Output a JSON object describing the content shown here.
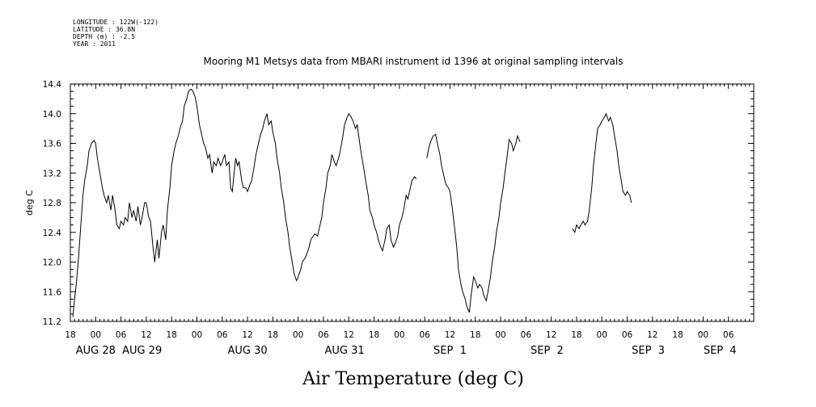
{
  "header": {
    "longitude": "LONGITUDE : 122W(-122)",
    "latitude": "LATITUDE : 36.8N",
    "depth": "DEPTH (m) : -2.5",
    "year": "YEAR : 2011"
  },
  "chart_data": {
    "type": "line",
    "title": "Mooring M1 Metsys data from MBARI instrument id 1396 at original sampling intervals",
    "xlabel": "Air Temperature (deg C)",
    "ylabel": "deg C",
    "ylim": [
      11.2,
      14.4
    ],
    "xlim_hours_from_aug28_00": [
      -6,
      156
    ],
    "yticks": [
      "11.2",
      "11.6",
      "12.0",
      "12.4",
      "12.8",
      "13.2",
      "13.6",
      "14.0",
      "14.4"
    ],
    "xticks": [
      "18",
      "00",
      "06",
      "12",
      "18",
      "00",
      "06",
      "12",
      "18",
      "00",
      "06",
      "12",
      "18",
      "00",
      "06",
      "12",
      "18",
      "00",
      "06",
      "12",
      "18",
      "00",
      "06",
      "12",
      "18",
      "00",
      "06"
    ],
    "date_labels": [
      "AUG 28",
      "AUG 29",
      "AUG 30",
      "AUG 31",
      "SEP  1",
      "SEP  2",
      "SEP  3",
      "SEP  4"
    ],
    "grid": false,
    "series": [
      {
        "segments": [
          [
            [
              -5.4,
              11.26
            ],
            [
              -5,
              11.5
            ],
            [
              -4.6,
              11.7
            ],
            [
              -4,
              12.1
            ],
            [
              -3.4,
              12.6
            ],
            [
              -3,
              12.9
            ],
            [
              -2.6,
              13.1
            ],
            [
              -2,
              13.3
            ],
            [
              -1.6,
              13.5
            ],
            [
              -1,
              13.6
            ],
            [
              -0.4,
              13.64
            ],
            [
              0,
              13.6
            ],
            [
              0.4,
              13.4
            ],
            [
              1,
              13.2
            ],
            [
              1.6,
              13.0
            ],
            [
              2,
              12.9
            ],
            [
              2.6,
              12.8
            ],
            [
              3,
              12.9
            ],
            [
              3.6,
              12.7
            ],
            [
              4,
              12.9
            ],
            [
              4.6,
              12.7
            ],
            [
              5,
              12.5
            ],
            [
              5.6,
              12.45
            ],
            [
              6,
              12.55
            ],
            [
              6.6,
              12.5
            ],
            [
              7,
              12.6
            ],
            [
              7.6,
              12.55
            ],
            [
              8,
              12.8
            ],
            [
              8.6,
              12.6
            ],
            [
              9,
              12.7
            ],
            [
              9.6,
              12.55
            ],
            [
              10,
              12.75
            ],
            [
              10.6,
              12.5
            ],
            [
              11,
              12.6
            ],
            [
              11.6,
              12.8
            ],
            [
              12,
              12.8
            ],
            [
              12.6,
              12.6
            ],
            [
              13,
              12.55
            ],
            [
              13.6,
              12.2
            ],
            [
              14,
              12.0
            ],
            [
              14.6,
              12.3
            ],
            [
              15,
              12.05
            ],
            [
              15.6,
              12.4
            ],
            [
              16,
              12.5
            ],
            [
              16.6,
              12.3
            ],
            [
              17,
              12.7
            ],
            [
              17.6,
              13.0
            ],
            [
              18,
              13.3
            ],
            [
              18.6,
              13.5
            ],
            [
              19,
              13.6
            ],
            [
              19.6,
              13.7
            ],
            [
              20,
              13.8
            ],
            [
              20.6,
              13.9
            ],
            [
              21,
              14.1
            ],
            [
              21.6,
              14.2
            ],
            [
              22,
              14.3
            ],
            [
              22.6,
              14.33
            ],
            [
              23,
              14.31
            ],
            [
              23.6,
              14.22
            ],
            [
              24,
              14.1
            ],
            [
              24.6,
              13.85
            ],
            [
              25,
              13.75
            ],
            [
              25.6,
              13.6
            ],
            [
              26,
              13.55
            ],
            [
              26.6,
              13.4
            ],
            [
              27,
              13.45
            ],
            [
              27.6,
              13.2
            ],
            [
              28,
              13.35
            ],
            [
              28.6,
              13.3
            ],
            [
              29,
              13.4
            ],
            [
              29.6,
              13.3
            ],
            [
              30,
              13.35
            ],
            [
              30.6,
              13.45
            ],
            [
              31,
              13.3
            ],
            [
              31.6,
              13.35
            ],
            [
              32,
              13.0
            ],
            [
              32.4,
              12.95
            ],
            [
              32.8,
              13.2
            ],
            [
              33.2,
              13.4
            ],
            [
              33.6,
              13.3
            ],
            [
              34,
              13.35
            ],
            [
              34.6,
              13.1
            ],
            [
              35,
              13.0
            ],
            [
              35.6,
              13.0
            ],
            [
              36,
              12.95
            ],
            [
              36.6,
              13.05
            ],
            [
              37,
              13.1
            ],
            [
              37.6,
              13.3
            ],
            [
              38,
              13.45
            ],
            [
              38.6,
              13.6
            ],
            [
              39,
              13.7
            ],
            [
              39.6,
              13.8
            ],
            [
              40,
              13.9
            ],
            [
              40.6,
              14.0
            ],
            [
              41,
              13.85
            ],
            [
              41.6,
              13.9
            ],
            [
              42,
              13.75
            ],
            [
              42.6,
              13.6
            ],
            [
              43,
              13.4
            ],
            [
              43.6,
              13.2
            ],
            [
              44,
              13.0
            ],
            [
              44.6,
              12.8
            ],
            [
              45,
              12.6
            ],
            [
              45.6,
              12.4
            ],
            [
              46,
              12.2
            ],
            [
              46.6,
              12.0
            ],
            [
              47,
              11.85
            ],
            [
              47.6,
              11.75
            ],
            [
              48,
              11.8
            ],
            [
              48.6,
              11.9
            ],
            [
              49,
              12.0
            ],
            [
              49.6,
              12.05
            ],
            [
              50,
              12.1
            ],
            [
              50.6,
              12.2
            ],
            [
              51,
              12.3
            ],
            [
              51.6,
              12.35
            ],
            [
              52,
              12.38
            ],
            [
              52.6,
              12.35
            ],
            [
              53,
              12.45
            ],
            [
              53.6,
              12.6
            ],
            [
              54,
              12.8
            ],
            [
              54.6,
              13.0
            ],
            [
              55,
              13.2
            ],
            [
              55.6,
              13.3
            ],
            [
              56,
              13.45
            ],
            [
              56.6,
              13.35
            ],
            [
              57,
              13.3
            ],
            [
              57.6,
              13.4
            ],
            [
              58,
              13.5
            ],
            [
              58.6,
              13.7
            ],
            [
              59,
              13.85
            ],
            [
              59.6,
              13.95
            ],
            [
              60,
              14.0
            ],
            [
              60.6,
              13.95
            ],
            [
              61,
              13.9
            ],
            [
              61.6,
              13.8
            ],
            [
              62,
              13.85
            ],
            [
              62.6,
              13.6
            ],
            [
              63,
              13.45
            ],
            [
              63.6,
              13.25
            ],
            [
              64,
              13.1
            ],
            [
              64.6,
              12.9
            ],
            [
              65,
              12.7
            ],
            [
              65.6,
              12.6
            ],
            [
              66,
              12.5
            ],
            [
              66.6,
              12.4
            ],
            [
              67,
              12.3
            ],
            [
              67.6,
              12.2
            ],
            [
              68,
              12.15
            ],
            [
              68.6,
              12.3
            ],
            [
              69,
              12.45
            ],
            [
              69.6,
              12.5
            ],
            [
              70,
              12.3
            ],
            [
              70.6,
              12.2
            ],
            [
              71,
              12.25
            ],
            [
              71.6,
              12.35
            ],
            [
              72,
              12.5
            ],
            [
              72.6,
              12.6
            ],
            [
              73,
              12.7
            ],
            [
              73.6,
              12.9
            ],
            [
              74,
              12.85
            ],
            [
              74.6,
              13.0
            ],
            [
              75,
              13.1
            ],
            [
              75.6,
              13.15
            ],
            [
              76,
              13.12
            ]
          ],
          [
            [
              78.5,
              13.4
            ],
            [
              79,
              13.55
            ],
            [
              79.6,
              13.65
            ],
            [
              80,
              13.7
            ],
            [
              80.6,
              13.72
            ],
            [
              81,
              13.6
            ],
            [
              81.6,
              13.45
            ],
            [
              82,
              13.3
            ],
            [
              82.6,
              13.15
            ],
            [
              83,
              13.05
            ],
            [
              83.6,
              13.0
            ],
            [
              84,
              12.95
            ],
            [
              84.6,
              12.7
            ],
            [
              85,
              12.5
            ],
            [
              85.6,
              12.2
            ],
            [
              86,
              11.9
            ],
            [
              86.6,
              11.7
            ],
            [
              87,
              11.6
            ],
            [
              87.6,
              11.5
            ],
            [
              88,
              11.4
            ],
            [
              88.6,
              11.32
            ],
            [
              89,
              11.55
            ],
            [
              89.6,
              11.8
            ],
            [
              90,
              11.75
            ],
            [
              90.6,
              11.65
            ],
            [
              91,
              11.7
            ],
            [
              91.6,
              11.65
            ],
            [
              92,
              11.55
            ],
            [
              92.6,
              11.48
            ],
            [
              93,
              11.6
            ],
            [
              93.6,
              11.8
            ],
            [
              94,
              12.0
            ],
            [
              94.6,
              12.2
            ],
            [
              95,
              12.4
            ],
            [
              95.6,
              12.6
            ],
            [
              96,
              12.8
            ],
            [
              96.6,
              13.0
            ],
            [
              97,
              13.2
            ],
            [
              97.6,
              13.45
            ],
            [
              98,
              13.65
            ],
            [
              98.6,
              13.6
            ],
            [
              99,
              13.5
            ],
            [
              99.6,
              13.6
            ],
            [
              100,
              13.7
            ],
            [
              100.6,
              13.62
            ]
          ],
          [
            [
              113,
              12.45
            ],
            [
              113.6,
              12.4
            ],
            [
              114,
              12.5
            ],
            [
              114.6,
              12.45
            ],
            [
              115,
              12.5
            ],
            [
              115.6,
              12.55
            ],
            [
              116,
              12.5
            ],
            [
              116.6,
              12.55
            ],
            [
              117,
              12.7
            ],
            [
              117.6,
              13.0
            ],
            [
              118,
              13.3
            ],
            [
              118.6,
              13.6
            ],
            [
              119,
              13.8
            ],
            [
              119.6,
              13.85
            ],
            [
              120,
              13.9
            ],
            [
              120.6,
              13.95
            ],
            [
              121,
              14.0
            ],
            [
              121.6,
              13.9
            ],
            [
              122,
              13.95
            ],
            [
              122.6,
              13.85
            ],
            [
              123,
              13.7
            ],
            [
              123.6,
              13.5
            ],
            [
              124,
              13.3
            ],
            [
              124.6,
              13.1
            ],
            [
              125,
              12.95
            ],
            [
              125.6,
              12.9
            ],
            [
              126,
              12.95
            ],
            [
              126.6,
              12.9
            ],
            [
              127,
              12.8
            ]
          ]
        ]
      }
    ]
  }
}
